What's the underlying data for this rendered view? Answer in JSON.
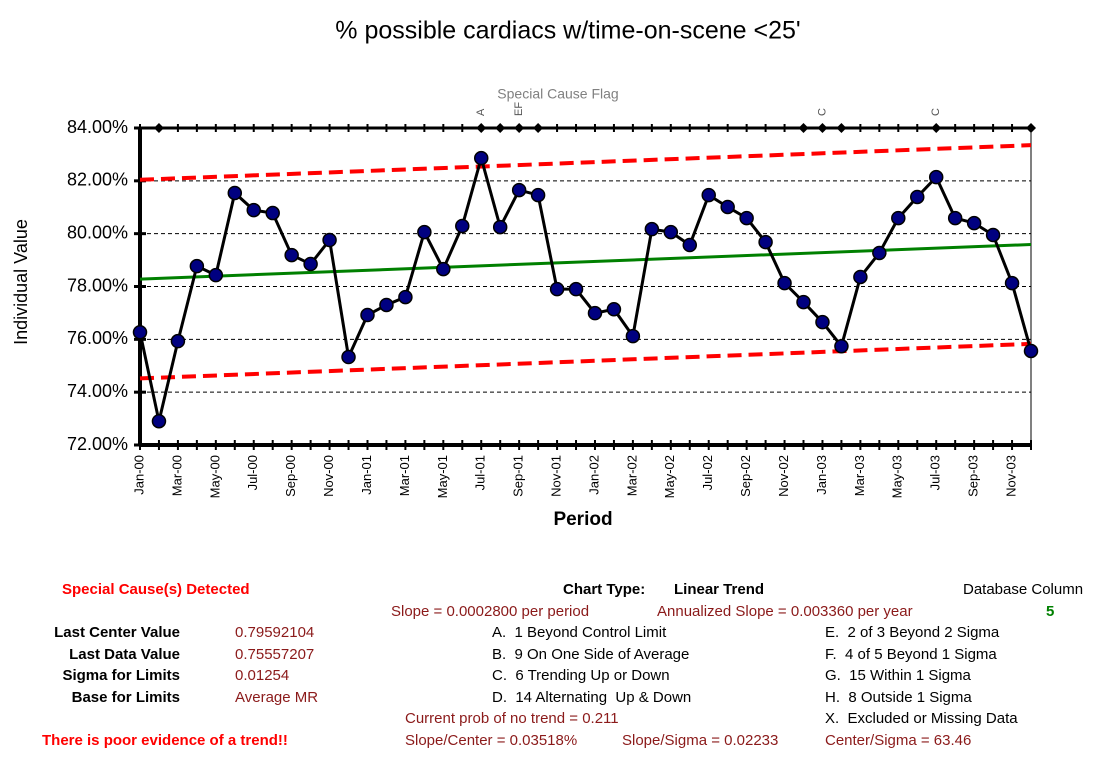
{
  "chart_data": {
    "type": "line",
    "title": "% possible cardiacs w/time-on-scene <25'",
    "flag_title": "Special Cause Flag",
    "x_label": "Period",
    "y_label": "Individual Value",
    "categories": [
      "Jan-00",
      null,
      "Mar-00",
      null,
      "May-00",
      null,
      "Jul-00",
      null,
      "Sep-00",
      null,
      "Nov-00",
      null,
      "Jan-01",
      null,
      "Mar-01",
      null,
      "May-01",
      null,
      "Jul-01",
      null,
      "Sep-01",
      null,
      "Nov-01",
      null,
      "Jan-02",
      null,
      "Mar-02",
      null,
      "May-02",
      null,
      "Jul-02",
      null,
      "Sep-02",
      null,
      "Nov-02",
      null,
      "Jan-03",
      null,
      "Mar-03",
      null,
      "May-03",
      null,
      "Jul-03",
      null,
      "Sep-03",
      null,
      "Nov-03",
      null
    ],
    "series": [
      {
        "color": "#000000",
        "marker_color": "#000080",
        "values": [
          76.27,
          72.9,
          75.93,
          78.77,
          78.43,
          81.54,
          80.89,
          80.78,
          79.19,
          78.85,
          79.76,
          75.33,
          76.92,
          77.3,
          77.6,
          80.06,
          78.66,
          80.29,
          82.86,
          80.25,
          81.65,
          81.46,
          77.9,
          77.9,
          76.99,
          77.14,
          76.12,
          80.17,
          80.06,
          79.57,
          81.46,
          81.01,
          80.59,
          79.68,
          78.13,
          77.41,
          76.65,
          75.74,
          78.36,
          79.27,
          80.59,
          81.39,
          82.14,
          80.59,
          80.4,
          79.95,
          78.13,
          75.56
        ]
      }
    ],
    "center_line": {
      "color": "#008000",
      "start": 78.28,
      "end": 79.59
    },
    "upper_limit": {
      "color": "#ff0000",
      "start": 82.04,
      "end": 83.35
    },
    "lower_limit": {
      "color": "#ff0000",
      "start": 74.52,
      "end": 75.83
    },
    "flag_marks": [
      false,
      true,
      false,
      false,
      false,
      false,
      false,
      false,
      false,
      false,
      false,
      false,
      false,
      false,
      false,
      false,
      false,
      false,
      true,
      true,
      true,
      true,
      false,
      false,
      false,
      false,
      false,
      false,
      false,
      false,
      false,
      false,
      false,
      false,
      false,
      true,
      true,
      true,
      false,
      false,
      false,
      false,
      true,
      false,
      false,
      false,
      false,
      true
    ],
    "flag_letters": [
      null,
      null,
      null,
      null,
      null,
      null,
      null,
      null,
      null,
      null,
      null,
      null,
      null,
      null,
      null,
      null,
      null,
      null,
      "A",
      null,
      "EF",
      null,
      null,
      null,
      null,
      null,
      null,
      null,
      null,
      null,
      null,
      null,
      null,
      null,
      null,
      null,
      "C",
      null,
      null,
      null,
      null,
      null,
      "C",
      null,
      null,
      null,
      null,
      null
    ],
    "ylim": [
      72,
      84
    ],
    "yticks": [
      {
        "value": 72,
        "label": "72.00%"
      },
      {
        "value": 74,
        "label": "74.00%"
      },
      {
        "value": 76,
        "label": "76.00%"
      },
      {
        "value": 78,
        "label": "78.00%"
      },
      {
        "value": 80,
        "label": "80.00%"
      },
      {
        "value": 82,
        "label": "82.00%"
      },
      {
        "value": 84,
        "label": "84.00%"
      }
    ],
    "grid": true
  },
  "footer": {
    "special_cause": "Special Cause(s) Detected",
    "chart_type_label": "Chart Type:",
    "chart_type": "Linear Trend",
    "database_column_label": "Database Column",
    "database_column": "5",
    "slope": "Slope = 0.0002800 per period",
    "annualized_slope": "Annualized Slope = 0.003360 per year",
    "stats": [
      {
        "label": "Last Center Value",
        "value": "0.79592104"
      },
      {
        "label": "Last Data Value",
        "value": "0.75557207"
      },
      {
        "label": "Sigma for Limits",
        "value": "0.01254"
      },
      {
        "label": "Base for Limits",
        "value": "Average MR"
      }
    ],
    "rules_left": [
      "A.  1 Beyond Control Limit",
      "B.  9 On One Side of Average",
      "C.  6 Trending Up or Down",
      "D.  14 Alternating  Up & Down"
    ],
    "rules_right": [
      "E.  2 of 3 Beyond 2 Sigma",
      "F.  4 of 5 Beyond 1 Sigma",
      "G.  15 Within 1 Sigma",
      "H.  8 Outside 1 Sigma",
      "X.  Excluded or Missing Data"
    ],
    "prob": "Current prob of no trend = 0.211",
    "evidence": "There is poor evidence of a trend!!",
    "slope_center": "Slope/Center = 0.03518%",
    "slope_sigma": "Slope/Sigma = 0.02233",
    "center_sigma": "Center/Sigma = 63.46"
  }
}
